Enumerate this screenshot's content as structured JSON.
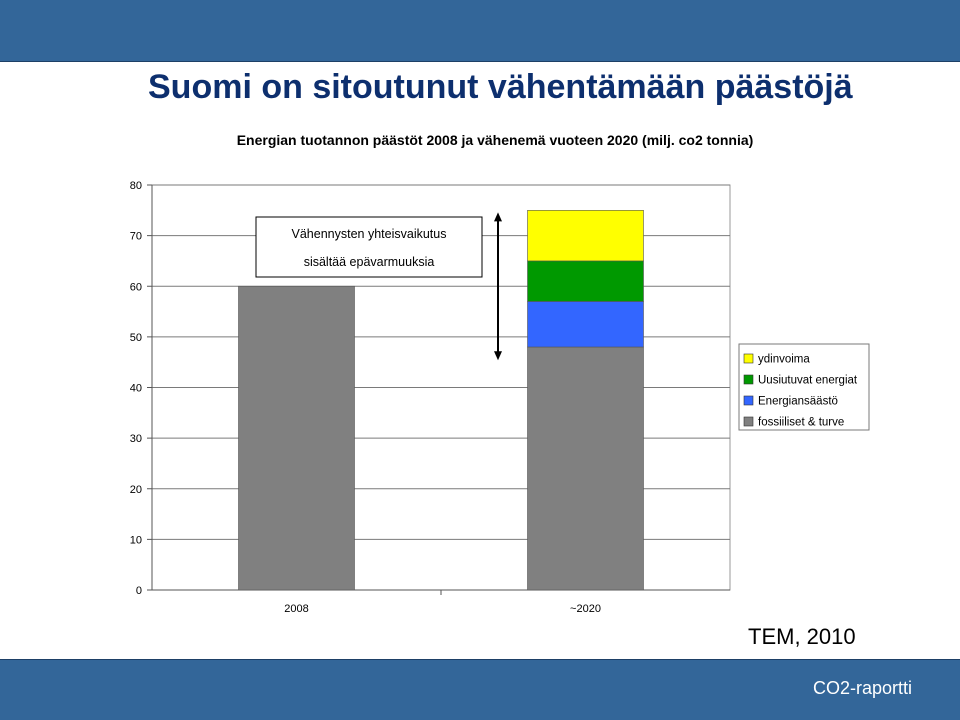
{
  "slide": {
    "title": "Suomi on sitoutunut vähentämään päästöjä",
    "source": "TEM, 2010",
    "footer": "CO2-raportti"
  },
  "chart_data": {
    "type": "bar",
    "stacked": true,
    "title": "Energian tuotannon päästöt 2008 ja vähenemä vuoteen 2020 (milj. co2 tonnia)",
    "categories": [
      "2008",
      "~2020"
    ],
    "ylim": [
      0,
      80
    ],
    "yticks": [
      0,
      10,
      20,
      30,
      40,
      50,
      60,
      70,
      80
    ],
    "grid": true,
    "legend_position": "right",
    "series": [
      {
        "name": "fossiiliset & turve",
        "values": [
          60,
          48
        ],
        "color": "#808080"
      },
      {
        "name": "Energiansäästö",
        "values": [
          0,
          9
        ],
        "color": "#3366ff"
      },
      {
        "name": "Uusiutuvat energiat",
        "values": [
          0,
          8
        ],
        "color": "#009900"
      },
      {
        "name": "ydinvoima",
        "values": [
          0,
          10
        ],
        "color": "#ffff00"
      }
    ],
    "legend_order": [
      "ydinvoima",
      "Uusiutuvat energiat",
      "Energiansäästö",
      "fossiiliset & turve"
    ],
    "annotation": {
      "line1": "Vähennysten yhteisvaikutus",
      "line2": "sisältää epävarmuuksia",
      "arrow_from": 75,
      "arrow_to": 45
    }
  }
}
